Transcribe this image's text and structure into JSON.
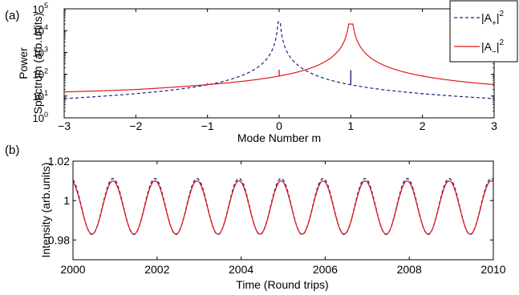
{
  "chart_data": [
    {
      "panel_label": "(a)",
      "type": "line",
      "xlabel": "Mode Number m",
      "ylabel_line1": "Power",
      "ylabel_line2": "Spectrum (arb.units)",
      "xlim": [
        -3,
        3
      ],
      "ylim": [
        1,
        100000
      ],
      "yscale": "log",
      "xticks": [
        -3,
        -2,
        -1,
        0,
        1,
        2,
        3
      ],
      "xtick_labels": [
        "−3",
        "−2",
        "−1",
        "0",
        "1",
        "2",
        "3"
      ],
      "yticks": [
        1,
        10,
        100,
        1000,
        10000,
        100000
      ],
      "ytick_bases": [
        "10",
        "10",
        "10",
        "10",
        "10",
        "10"
      ],
      "ytick_exps": [
        "0",
        "1",
        "2",
        "3",
        "4",
        "5"
      ],
      "legend": {
        "placement": "top-right",
        "entries": [
          {
            "base": "|A",
            "sub": "+",
            "tail": "|",
            "sup": "2",
            "color": "#1a237e",
            "dash": "dashed"
          },
          {
            "base": "|A",
            "sub": "−",
            "tail": "|",
            "sup": "2",
            "color": "#e0191b",
            "dash": "solid"
          }
        ]
      },
      "series": [
        {
          "color": "#1a237e",
          "dash": "dashed",
          "peak_at": 0,
          "peak_value": 25000,
          "floor_at_edges": 3,
          "near_peak_value": 80,
          "spikes": [
            {
              "x": -1,
              "delta": 4
            },
            {
              "x": 1,
              "delta": 120
            },
            {
              "x": 2,
              "delta": -1
            }
          ]
        },
        {
          "color": "#e0191b",
          "dash": "solid",
          "peak_at": 1,
          "peak_value": 20000,
          "floor_at_edges": 8,
          "near_peak_value": 200,
          "spikes": [
            {
              "x": 0,
              "delta": 80
            },
            {
              "x": -1,
              "delta": 6
            },
            {
              "x": 2,
              "delta": 8
            }
          ]
        }
      ]
    },
    {
      "panel_label": "(b)",
      "type": "line",
      "xlabel": "Time (Round trips)",
      "ylabel": "Intensity (arb.units)",
      "xlim": [
        2000,
        2010
      ],
      "ylim": [
        0.97,
        1.02
      ],
      "xticks": [
        2000,
        2002,
        2004,
        2006,
        2008,
        2010
      ],
      "xtick_labels": [
        "2000",
        "2002",
        "2004",
        "2006",
        "2008",
        "2010"
      ],
      "yticks": [
        0.98,
        1.0,
        1.02
      ],
      "ytick_labels": [
        "0.98",
        "1",
        "1.02"
      ],
      "series": [
        {
          "color": "#1a237e",
          "dash": "dashed",
          "mean": 0.997,
          "amplitude": 0.0142,
          "period": 1.0,
          "peak_time": 2000.95
        },
        {
          "color": "#e0191b",
          "dash": "solid",
          "mean": 0.9965,
          "amplitude": 0.0135,
          "period": 1.0,
          "peak_time": 2000.95
        }
      ]
    }
  ]
}
